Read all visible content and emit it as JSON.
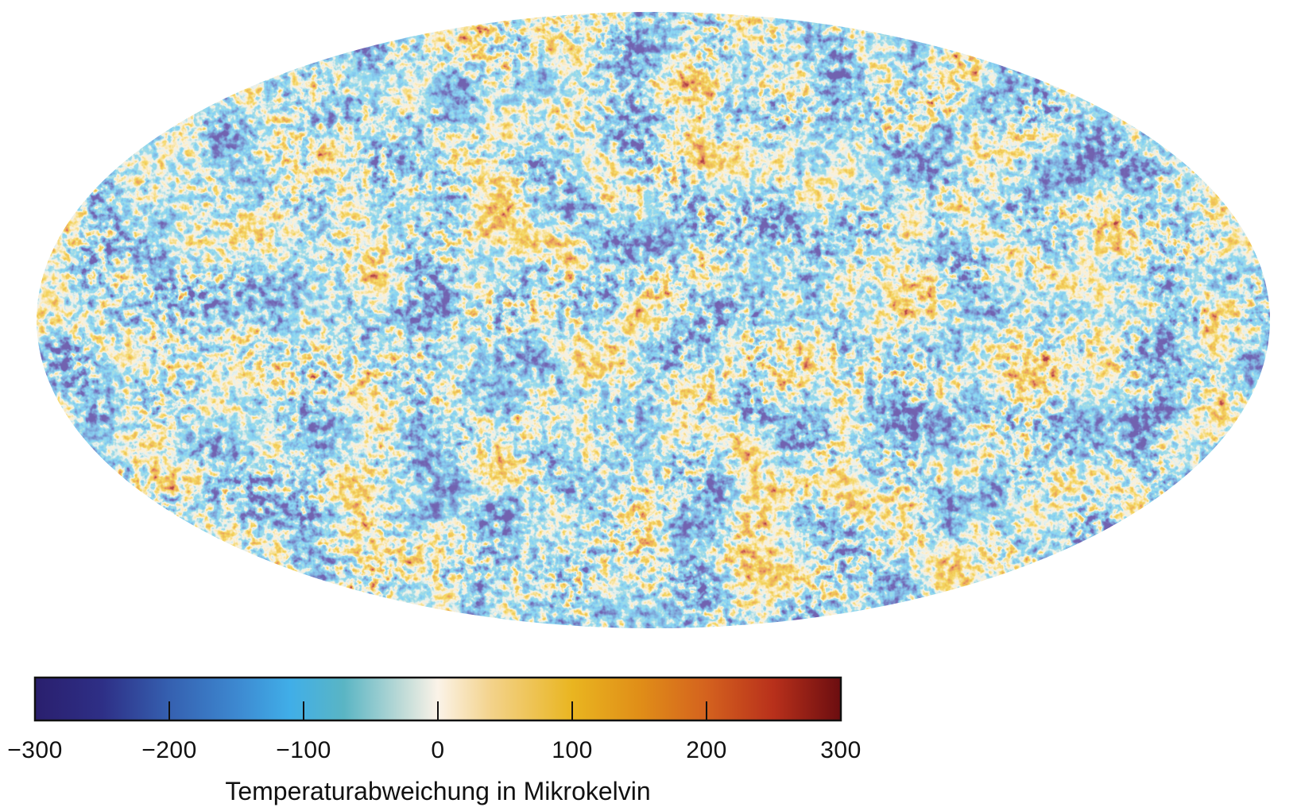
{
  "map": {
    "projection": "mollweide",
    "shows": "temperature-anisotropy-sky-map"
  },
  "colorbar": {
    "min": -300,
    "max": 300,
    "ticks": [
      -300,
      -200,
      -100,
      0,
      100,
      200,
      300
    ],
    "tick_labels": [
      "−300",
      "−200",
      "−100",
      "0",
      "100",
      "200",
      "300"
    ],
    "label": "Temperaturabweichung in Mikrokelvin",
    "color_stops": [
      {
        "value": -300,
        "color": "#2a1f6e"
      },
      {
        "value": -250,
        "color": "#2e2f86"
      },
      {
        "value": -200,
        "color": "#3560b0"
      },
      {
        "value": -150,
        "color": "#3d88d0"
      },
      {
        "value": -110,
        "color": "#40aee8"
      },
      {
        "value": -70,
        "color": "#5ab5c4"
      },
      {
        "value": -25,
        "color": "#c2dcd8"
      },
      {
        "value": 0,
        "color": "#fbf3e8"
      },
      {
        "value": 40,
        "color": "#f3d28a"
      },
      {
        "value": 100,
        "color": "#e9b520"
      },
      {
        "value": 150,
        "color": "#e08e18"
      },
      {
        "value": 200,
        "color": "#d4621e"
      },
      {
        "value": 250,
        "color": "#b8301b"
      },
      {
        "value": 300,
        "color": "#6b0d10"
      }
    ]
  }
}
